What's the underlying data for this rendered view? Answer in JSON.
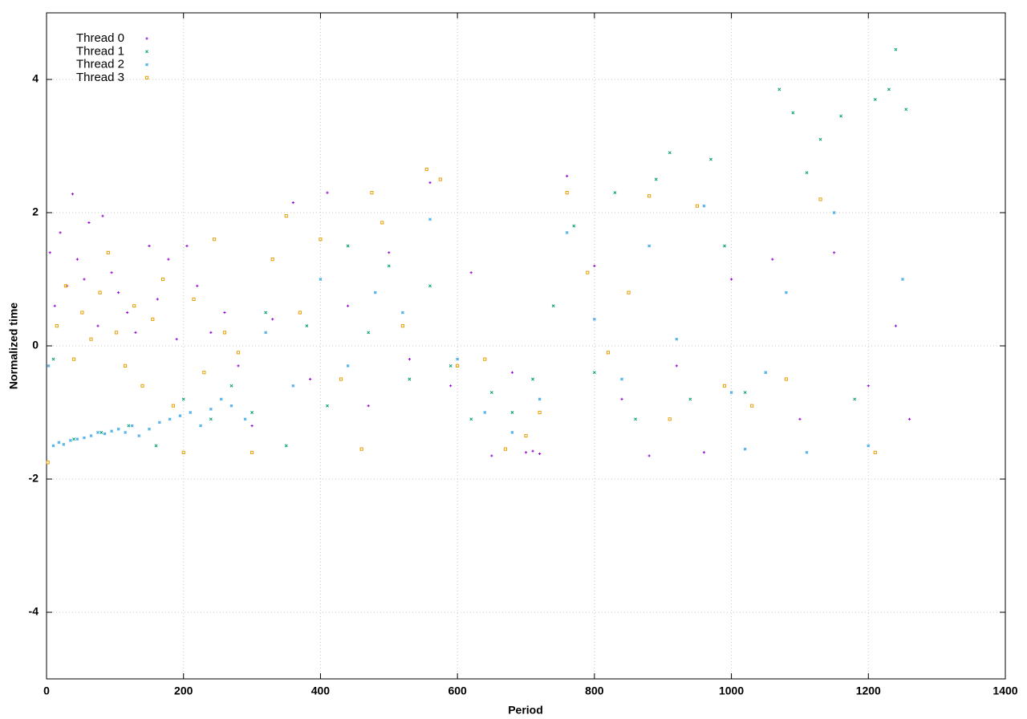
{
  "chart_data": {
    "type": "scatter",
    "x_label": "Period",
    "y_label": "Normalized time",
    "xlim": [
      0,
      1400
    ],
    "xticks": [
      0,
      200,
      400,
      600,
      800,
      1000,
      1200,
      1400
    ],
    "ylim": [
      -5,
      5
    ],
    "yticks": [
      -4,
      -2,
      0,
      2,
      4
    ],
    "grid": true,
    "legend_position": "top-left",
    "series": [
      {
        "name": "Thread 0",
        "color": "#9400d3",
        "marker": "plus",
        "x": [
          5,
          12,
          20,
          30,
          38,
          45,
          55,
          62,
          75,
          82,
          95,
          105,
          118,
          130,
          150,
          162,
          178,
          190,
          205,
          220,
          240,
          260,
          280,
          300,
          330,
          360,
          385,
          410,
          440,
          470,
          500,
          530,
          560,
          590,
          620,
          650,
          680,
          700,
          710,
          720,
          760,
          800,
          840,
          880,
          920,
          960,
          1000,
          1060,
          1100,
          1150,
          1200,
          1240,
          1260
        ],
        "values": [
          1.4,
          0.6,
          1.7,
          0.9,
          2.28,
          1.3,
          1.0,
          1.85,
          0.3,
          1.95,
          1.1,
          0.8,
          0.5,
          0.2,
          1.5,
          0.7,
          1.3,
          0.1,
          1.5,
          0.9,
          0.2,
          0.5,
          -0.3,
          -1.2,
          0.4,
          2.15,
          -0.5,
          2.3,
          0.6,
          -0.9,
          1.4,
          -0.2,
          2.45,
          -0.6,
          1.1,
          -1.65,
          -0.4,
          -1.6,
          -1.58,
          -1.62,
          2.55,
          1.2,
          -0.8,
          -1.65,
          -0.3,
          -1.6,
          1.0,
          1.3,
          -1.1,
          1.4,
          -0.6,
          0.3,
          -1.1
        ]
      },
      {
        "name": "Thread 1",
        "color": "#009e73",
        "marker": "cross",
        "x": [
          10,
          40,
          80,
          120,
          160,
          200,
          240,
          270,
          300,
          320,
          350,
          380,
          410,
          440,
          470,
          500,
          530,
          560,
          590,
          620,
          650,
          680,
          710,
          740,
          770,
          800,
          830,
          860,
          890,
          910,
          940,
          970,
          990,
          1020,
          1050,
          1070,
          1090,
          1110,
          1130,
          1160,
          1180,
          1210,
          1230,
          1240,
          1255
        ],
        "values": [
          -0.2,
          -1.4,
          -1.3,
          -1.2,
          -1.5,
          -0.8,
          -1.1,
          -0.6,
          -1.0,
          0.5,
          -1.5,
          0.3,
          -0.9,
          1.5,
          0.2,
          1.2,
          -0.5,
          0.9,
          -0.3,
          -1.1,
          -0.7,
          -1.0,
          -0.5,
          0.6,
          1.8,
          -0.4,
          2.3,
          -1.1,
          2.5,
          2.9,
          -0.8,
          2.8,
          1.5,
          -0.7,
          -0.4,
          3.85,
          3.5,
          2.6,
          3.1,
          3.45,
          -0.8,
          3.7,
          3.85,
          4.45,
          3.55
        ]
      },
      {
        "name": "Thread 2",
        "color": "#56b4e9",
        "marker": "star",
        "x": [
          3,
          10,
          18,
          25,
          35,
          45,
          55,
          65,
          75,
          85,
          95,
          105,
          115,
          125,
          135,
          150,
          165,
          180,
          195,
          210,
          225,
          240,
          255,
          270,
          290,
          320,
          360,
          400,
          440,
          480,
          520,
          560,
          600,
          640,
          680,
          720,
          760,
          800,
          840,
          880,
          920,
          960,
          1000,
          1020,
          1050,
          1080,
          1110,
          1150,
          1200,
          1250
        ],
        "values": [
          -0.3,
          -1.5,
          -1.45,
          -1.48,
          -1.42,
          -1.4,
          -1.38,
          -1.35,
          -1.3,
          -1.32,
          -1.28,
          -1.25,
          -1.3,
          -1.2,
          -1.35,
          -1.25,
          -1.15,
          -1.1,
          -1.05,
          -1.0,
          -1.2,
          -0.95,
          -0.8,
          -0.9,
          -1.1,
          0.2,
          -0.6,
          1.0,
          -0.3,
          0.8,
          0.5,
          1.9,
          -0.2,
          -1.0,
          -1.3,
          -0.8,
          1.7,
          0.4,
          -0.5,
          1.5,
          0.1,
          2.1,
          -0.7,
          -1.55,
          -0.4,
          0.8,
          -1.6,
          2.0,
          -1.5,
          1.0
        ]
      },
      {
        "name": "Thread 3",
        "color": "#e69f00",
        "marker": "square",
        "x": [
          2,
          15,
          28,
          40,
          52,
          65,
          78,
          90,
          102,
          115,
          128,
          140,
          155,
          170,
          185,
          200,
          215,
          230,
          245,
          260,
          280,
          300,
          330,
          350,
          370,
          400,
          430,
          460,
          475,
          490,
          520,
          555,
          575,
          600,
          640,
          670,
          700,
          720,
          760,
          790,
          820,
          850,
          880,
          910,
          950,
          990,
          1030,
          1080,
          1130,
          1210
        ],
        "values": [
          -1.75,
          0.3,
          0.9,
          -0.2,
          0.5,
          0.1,
          0.8,
          1.4,
          0.2,
          -0.3,
          0.6,
          -0.6,
          0.4,
          1.0,
          -0.9,
          -1.6,
          0.7,
          -0.4,
          1.6,
          0.2,
          -0.1,
          -1.6,
          1.3,
          1.95,
          0.5,
          1.6,
          -0.5,
          -1.55,
          2.3,
          1.85,
          0.3,
          2.65,
          2.5,
          -0.3,
          -0.2,
          -1.55,
          -1.35,
          -1.0,
          2.3,
          1.1,
          -0.1,
          0.8,
          2.25,
          -1.1,
          2.1,
          -0.6,
          -0.9,
          -0.5,
          2.2,
          -1.6
        ]
      }
    ]
  }
}
